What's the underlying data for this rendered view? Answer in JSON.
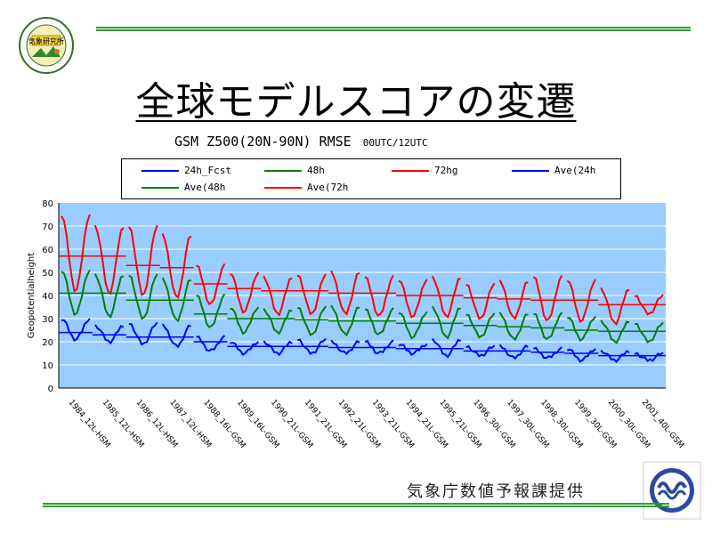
{
  "page": {
    "title": "全球モデルスコアの変遷",
    "subtitle_main": "GSM Z500(20N-90N) RMSE",
    "subtitle_small": "00UTC/12UTC",
    "credit": "気象庁数値予報課提供",
    "logo_left_text": "気象研究所"
  },
  "colors": {
    "blue": "#0000ff",
    "green": "#008000",
    "red": "#ff0000",
    "plot_bg": "#99ccff",
    "rule": "#339933"
  },
  "legend": [
    {
      "label": "24h_Fcst",
      "color": "#0000ff"
    },
    {
      "label": "48h",
      "color": "#008000"
    },
    {
      "label": "72hg",
      "color": "#ff0000"
    },
    {
      "label": "Ave(24h",
      "color": "#0000ff"
    },
    {
      "label": "Ave(48h",
      "color": "#008000"
    },
    {
      "label": "Ave(72h",
      "color": "#ff0000"
    }
  ],
  "chart_data": {
    "type": "line",
    "ylabel": "Geopotentialheight",
    "xlabel": "",
    "ylim": [
      0,
      80
    ],
    "yticks": [
      0,
      10,
      20,
      30,
      40,
      50,
      60,
      70,
      80
    ],
    "grid": true,
    "legend_position": "top",
    "categories": [
      "1984_12L-HSM",
      "1985_12L-HSM",
      "1986_12L-HSM",
      "1987_12L-HSM",
      "1988_16L-GSM",
      "1989_16L-GSM",
      "1990_21L-GSM",
      "1991_21L-GSM",
      "1992_21L-GSM",
      "1993_21L-GSM",
      "1994_21L-GSM",
      "1995_21L-GSM",
      "1996_30L-GSM",
      "1997_30L-GSM",
      "1998_30L-GSM",
      "1999_30L-GSM",
      "2000_30L-GSM",
      "2001_40L-GSM"
    ],
    "annual_average": {
      "24h": [
        24,
        23,
        22,
        22,
        20,
        18,
        18,
        18,
        17.5,
        17.5,
        17,
        17,
        16,
        16,
        15.5,
        15,
        14,
        14
      ],
      "48h": [
        41,
        41,
        38,
        38,
        32,
        30,
        30,
        29.5,
        29,
        29,
        28,
        28,
        27,
        26.5,
        26,
        25,
        24.5,
        24.5
      ],
      "72h": [
        57,
        57,
        53,
        52,
        45,
        43,
        42,
        42,
        41,
        41,
        40,
        40,
        39,
        38.5,
        38,
        38,
        36,
        36
      ]
    },
    "annual_winter_max": {
      "24h": [
        30,
        27,
        28,
        27,
        22,
        20,
        20,
        21,
        20,
        20,
        19,
        21,
        18,
        18,
        17,
        17,
        16,
        15
      ],
      "48h": [
        51,
        49,
        49,
        47,
        40,
        35,
        34,
        35,
        35,
        34,
        33,
        35,
        32,
        32,
        32,
        31,
        29,
        28
      ],
      "72h": [
        75,
        70,
        70,
        66,
        53,
        50,
        48,
        49,
        50,
        48,
        47,
        48,
        45,
        46,
        48,
        47,
        43,
        40
      ]
    },
    "annual_summer_min": {
      "24h": [
        21,
        20,
        19,
        18,
        16,
        15,
        15,
        15,
        15,
        15,
        15,
        14,
        14,
        13,
        13,
        12,
        12,
        12
      ],
      "48h": [
        32,
        31,
        30,
        29,
        26,
        24,
        24,
        23,
        23,
        23,
        22,
        22,
        22,
        21,
        21,
        21,
        20,
        20
      ],
      "72h": [
        42,
        41,
        40,
        39,
        36,
        33,
        32,
        32,
        32,
        31,
        31,
        31,
        30,
        30,
        29,
        29,
        28,
        32
      ]
    }
  }
}
